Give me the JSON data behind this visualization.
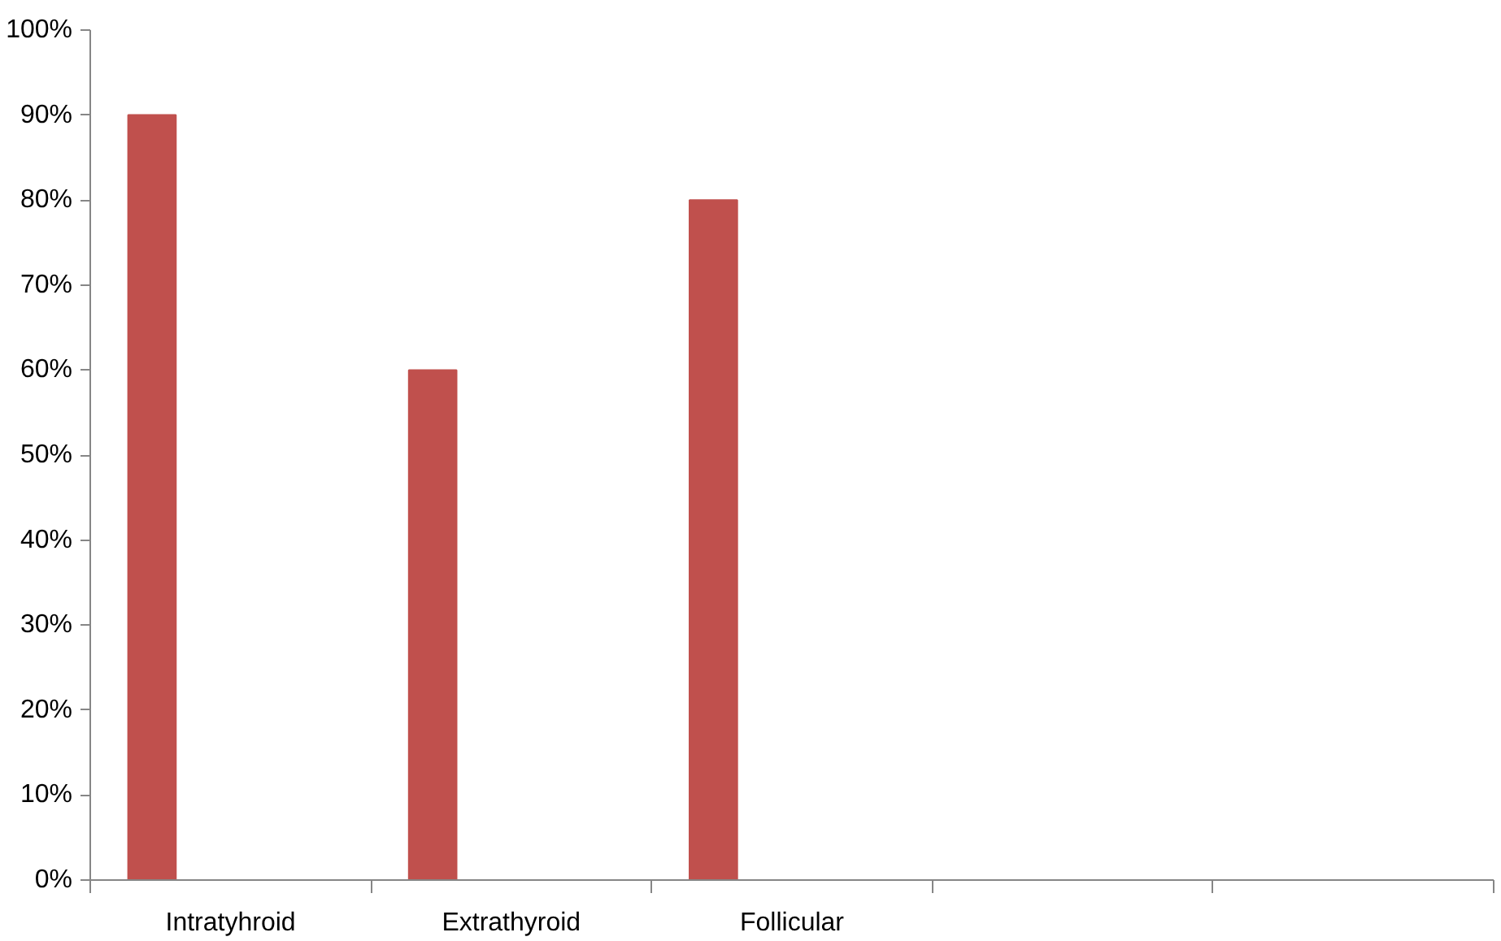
{
  "chart_data": {
    "type": "bar",
    "categories": [
      "Intratyhroid",
      "Extrathyroid",
      "Follicular",
      null,
      null
    ],
    "values": [
      90,
      60,
      80,
      null,
      null
    ],
    "color": "#c0504d",
    "ylim": [
      0,
      100
    ],
    "yticks": [
      {
        "value": 0,
        "label": "0%"
      },
      {
        "value": 10,
        "label": "10%"
      },
      {
        "value": 20,
        "label": "20%"
      },
      {
        "value": 30,
        "label": "30%"
      },
      {
        "value": 40,
        "label": "40%"
      },
      {
        "value": 50,
        "label": "50%"
      },
      {
        "value": 60,
        "label": "60%"
      },
      {
        "value": 70,
        "label": "70%"
      },
      {
        "value": 80,
        "label": "80%"
      },
      {
        "value": 90,
        "label": "90%"
      },
      {
        "value": 100,
        "label": "100%"
      }
    ],
    "grid": false
  }
}
